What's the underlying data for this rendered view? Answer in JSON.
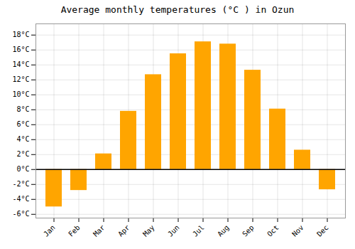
{
  "chart_data": {
    "type": "bar",
    "title": "Average monthly temperatures (°C ) in Ozun",
    "categories": [
      "Jan",
      "Feb",
      "Mar",
      "Apr",
      "May",
      "Jun",
      "Jul",
      "Aug",
      "Sep",
      "Oct",
      "Nov",
      "Dec"
    ],
    "values": [
      -5.0,
      -2.8,
      2.1,
      7.8,
      12.7,
      15.5,
      17.1,
      16.8,
      13.3,
      8.1,
      2.6,
      -2.7
    ],
    "color": "#FFA500",
    "ylim": [
      -6.5,
      19.5
    ],
    "yticks": [
      {
        "value": -6,
        "label": "-6°C"
      },
      {
        "value": -4,
        "label": "-4°C"
      },
      {
        "value": -2,
        "label": "-2°C"
      },
      {
        "value": 0,
        "label": "0°C"
      },
      {
        "value": 2,
        "label": "2°C"
      },
      {
        "value": 4,
        "label": "4°C"
      },
      {
        "value": 6,
        "label": "6°C"
      },
      {
        "value": 8,
        "label": "8°C"
      },
      {
        "value": 10,
        "label": "10°C"
      },
      {
        "value": 12,
        "label": "12°C"
      },
      {
        "value": 14,
        "label": "14°C"
      },
      {
        "value": 16,
        "label": "16°C"
      },
      {
        "value": 18,
        "label": "18°C"
      }
    ],
    "grid": true
  }
}
